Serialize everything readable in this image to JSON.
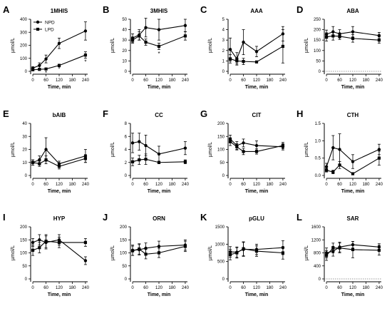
{
  "legend": {
    "npd": "NPD",
    "lpd": "LPD"
  },
  "chart_data": [
    {
      "letter": "A",
      "type": "line",
      "title": "1MHIS",
      "ylabel": "µmol/L",
      "xlabel": "Time, min",
      "x": [
        0,
        30,
        60,
        120,
        240
      ],
      "xticks": [
        "0",
        "60",
        "120",
        "180",
        "240"
      ],
      "xtick_values": [
        0,
        60,
        120,
        180,
        240
      ],
      "ylim": [
        0,
        400
      ],
      "yticks": [
        "0",
        "100",
        "200",
        "300",
        "400"
      ],
      "ytick_values": [
        0,
        100,
        200,
        300,
        400
      ],
      "has_legend": true,
      "series": [
        {
          "name": "NPD",
          "marker": "circle",
          "values": [
            25,
            45,
            95,
            215,
            310
          ],
          "err": [
            10,
            20,
            30,
            40,
            70
          ]
        },
        {
          "name": "LPD",
          "marker": "square",
          "values": [
            12,
            15,
            18,
            45,
            125
          ],
          "err": [
            5,
            5,
            6,
            10,
            25
          ]
        }
      ],
      "annotations": [
        {
          "text": "*",
          "x": 60,
          "y": -10
        },
        {
          "text": "*",
          "x": 120,
          "y": 18
        },
        {
          "text": "*",
          "x": 240,
          "y": 75
        }
      ]
    },
    {
      "letter": "B",
      "type": "line",
      "title": "3MHIS",
      "ylabel": "µmol/L",
      "xlabel": "Time, min",
      "x": [
        0,
        30,
        60,
        120,
        240
      ],
      "xticks": [
        "0",
        "60",
        "120",
        "180",
        "240"
      ],
      "xtick_values": [
        0,
        60,
        120,
        180,
        240
      ],
      "ylim": [
        0,
        50
      ],
      "yticks": [
        "0",
        "10",
        "20",
        "30",
        "40",
        "50"
      ],
      "ytick_values": [
        0,
        10,
        20,
        30,
        40,
        50
      ],
      "has_legend": false,
      "series": [
        {
          "name": "NPD",
          "marker": "circle",
          "values": [
            32,
            35,
            42,
            40,
            44
          ],
          "err": [
            4,
            5,
            9,
            10,
            6
          ]
        },
        {
          "name": "LPD",
          "marker": "square",
          "values": [
            30,
            34,
            28,
            24,
            34
          ],
          "err": [
            3,
            4,
            3,
            3,
            4
          ]
        }
      ],
      "annotations": [
        {
          "text": "*",
          "x": 120,
          "y": 17
        }
      ]
    },
    {
      "letter": "C",
      "type": "line",
      "title": "AAA",
      "ylabel": "µmol/L",
      "xlabel": "Time, min",
      "x": [
        0,
        30,
        60,
        120,
        240
      ],
      "xticks": [
        "0",
        "60",
        "120",
        "180",
        "240"
      ],
      "xtick_values": [
        0,
        60,
        120,
        180,
        240
      ],
      "ylim": [
        0,
        5
      ],
      "yticks": [
        "0",
        "1",
        "2",
        "3",
        "4",
        "5"
      ],
      "ytick_values": [
        0,
        1,
        2,
        3,
        4,
        5
      ],
      "has_legend": false,
      "series": [
        {
          "name": "NPD",
          "marker": "circle",
          "values": [
            2.1,
            1.2,
            2.8,
            1.9,
            3.6
          ],
          "err": [
            1.1,
            0.6,
            1.2,
            0.5,
            0.7
          ]
        },
        {
          "name": "LPD",
          "marker": "square",
          "values": [
            1.2,
            1.0,
            0.95,
            0.9,
            2.4
          ],
          "err": [
            0.4,
            0.3,
            0.3,
            0.1,
            1.6
          ]
        }
      ],
      "annotations": []
    },
    {
      "letter": "D",
      "type": "line",
      "title": "ABA",
      "ylabel": "µmol/L",
      "xlabel": "Time, min",
      "x": [
        0,
        30,
        60,
        120,
        240
      ],
      "xticks": [
        "0",
        "60",
        "120",
        "180",
        "240"
      ],
      "xtick_values": [
        0,
        60,
        120,
        180,
        240
      ],
      "ylim": [
        0,
        250
      ],
      "yticks": [
        "0",
        "50",
        "100",
        "150",
        "200",
        "250"
      ],
      "ytick_values": [
        0,
        50,
        100,
        150,
        200,
        250
      ],
      "has_legend": false,
      "series": [
        {
          "name": "NPD",
          "marker": "circle",
          "values": [
            178,
            190,
            180,
            190,
            172
          ],
          "err": [
            20,
            25,
            20,
            25,
            15
          ]
        },
        {
          "name": "LPD",
          "marker": "square",
          "values": [
            165,
            170,
            168,
            158,
            150
          ],
          "err": [
            20,
            20,
            15,
            18,
            15
          ]
        }
      ],
      "annotations": []
    },
    {
      "letter": "E",
      "type": "line",
      "title": "bAIB",
      "ylabel": "µmol/L",
      "xlabel": "Time, min",
      "x": [
        0,
        30,
        60,
        120,
        240
      ],
      "xticks": [
        "0",
        "60",
        "120",
        "180",
        "240"
      ],
      "xtick_values": [
        0,
        60,
        120,
        180,
        240
      ],
      "ylim": [
        0,
        40
      ],
      "yticks": [
        "0",
        "10",
        "20",
        "30",
        "40"
      ],
      "ytick_values": [
        0,
        10,
        20,
        30,
        40
      ],
      "has_legend": false,
      "series": [
        {
          "name": "NPD",
          "marker": "circle",
          "values": [
            10,
            12,
            20,
            9,
            15
          ],
          "err": [
            2,
            3,
            9,
            2,
            5
          ]
        },
        {
          "name": "LPD",
          "marker": "square",
          "values": [
            10,
            9,
            12,
            7,
            13
          ],
          "err": [
            2,
            2,
            3,
            2,
            3
          ]
        }
      ],
      "annotations": []
    },
    {
      "letter": "F",
      "type": "line",
      "title": "CC",
      "ylabel": "µmol/L",
      "xlabel": "Time, min",
      "x": [
        0,
        30,
        60,
        120,
        240
      ],
      "xticks": [
        "0",
        "60",
        "120",
        "180",
        "240"
      ],
      "xtick_values": [
        0,
        60,
        120,
        180,
        240
      ],
      "ylim": [
        0,
        8
      ],
      "yticks": [
        "0",
        "2",
        "4",
        "6",
        "8"
      ],
      "ytick_values": [
        0,
        2,
        4,
        6,
        8
      ],
      "has_legend": false,
      "series": [
        {
          "name": "NPD",
          "marker": "circle",
          "values": [
            5.0,
            5.2,
            4.6,
            3.3,
            4.2
          ],
          "err": [
            1.5,
            1.3,
            1.6,
            1.2,
            1.0
          ]
        },
        {
          "name": "LPD",
          "marker": "square",
          "values": [
            2.1,
            2.4,
            2.5,
            2.0,
            2.1
          ],
          "err": [
            0.6,
            0.7,
            0.8,
            0.2,
            0.3
          ]
        }
      ],
      "annotations": []
    },
    {
      "letter": "G",
      "type": "line",
      "title": "CIT",
      "ylabel": "µmol/L",
      "xlabel": "Time, min",
      "x": [
        0,
        30,
        60,
        120,
        240
      ],
      "xticks": [
        "0",
        "60",
        "120",
        "180",
        "240"
      ],
      "xtick_values": [
        0,
        60,
        120,
        180,
        240
      ],
      "ylim": [
        0,
        200
      ],
      "yticks": [
        "0",
        "50",
        "100",
        "150",
        "200"
      ],
      "ytick_values": [
        0,
        50,
        100,
        150,
        200
      ],
      "has_legend": false,
      "series": [
        {
          "name": "NPD",
          "marker": "circle",
          "values": [
            140,
            115,
            125,
            115,
            110
          ],
          "err": [
            15,
            15,
            15,
            18,
            12
          ]
        },
        {
          "name": "LPD",
          "marker": "square",
          "values": [
            130,
            110,
            92,
            92,
            115
          ],
          "err": [
            15,
            12,
            12,
            10,
            12
          ]
        }
      ],
      "annotations": []
    },
    {
      "letter": "H",
      "type": "line",
      "title": "CTH",
      "ylabel": "µmol/L",
      "xlabel": "Time, min",
      "x": [
        0,
        30,
        60,
        120,
        240
      ],
      "xticks": [
        "0",
        "60",
        "120",
        "180",
        "240"
      ],
      "xtick_values": [
        0,
        60,
        120,
        180,
        240
      ],
      "ylim": [
        0,
        1.5
      ],
      "yticks": [
        "0.0",
        "0.5",
        "1.0",
        "1.5"
      ],
      "ytick_values": [
        0,
        0.5,
        1.0,
        1.5
      ],
      "has_legend": false,
      "series": [
        {
          "name": "NPD",
          "marker": "circle",
          "values": [
            0.25,
            0.8,
            0.75,
            0.4,
            0.75
          ],
          "err": [
            0.1,
            0.35,
            0.45,
            0.2,
            0.15
          ]
        },
        {
          "name": "LPD",
          "marker": "square",
          "values": [
            0.15,
            0.1,
            0.3,
            0.05,
            0.5
          ],
          "err": [
            0.05,
            0.05,
            0.1,
            0.02,
            0.2
          ]
        }
      ],
      "annotations": []
    },
    {
      "letter": "I",
      "type": "line",
      "title": "HYP",
      "ylabel": "µmol/L",
      "xlabel": "Time, min",
      "x": [
        0,
        30,
        60,
        120,
        240
      ],
      "xticks": [
        "0",
        "60",
        "120",
        "180",
        "240"
      ],
      "xtick_values": [
        0,
        60,
        120,
        180,
        240
      ],
      "ylim": [
        0,
        200
      ],
      "yticks": [
        "0",
        "50",
        "100",
        "150",
        "200"
      ],
      "ytick_values": [
        0,
        50,
        100,
        150,
        200
      ],
      "has_legend": false,
      "series": [
        {
          "name": "NPD",
          "marker": "circle",
          "values": [
            140,
            150,
            140,
            150,
            70
          ],
          "err": [
            15,
            20,
            25,
            20,
            15
          ]
        },
        {
          "name": "LPD",
          "marker": "square",
          "values": [
            110,
            120,
            145,
            140,
            140
          ],
          "err": [
            20,
            20,
            25,
            20,
            15
          ]
        }
      ],
      "annotations": []
    },
    {
      "letter": "J",
      "type": "line",
      "title": "ORN",
      "ylabel": "µmol/L",
      "xlabel": "Time, min",
      "x": [
        0,
        30,
        60,
        120,
        240
      ],
      "xticks": [
        "0",
        "60",
        "120",
        "180",
        "240"
      ],
      "xtick_values": [
        0,
        60,
        120,
        180,
        240
      ],
      "ylim": [
        0,
        200
      ],
      "yticks": [
        "0",
        "50",
        "100",
        "150",
        "200"
      ],
      "ytick_values": [
        0,
        50,
        100,
        150,
        200
      ],
      "has_legend": false,
      "series": [
        {
          "name": "NPD",
          "marker": "circle",
          "values": [
            110,
            112,
            118,
            125,
            130
          ],
          "err": [
            20,
            20,
            20,
            20,
            20
          ]
        },
        {
          "name": "LPD",
          "marker": "square",
          "values": [
            108,
            115,
            95,
            100,
            125
          ],
          "err": [
            18,
            20,
            18,
            18,
            20
          ]
        }
      ],
      "annotations": []
    },
    {
      "letter": "K",
      "type": "line",
      "title": "pGLU",
      "ylabel": "µmol/L",
      "xlabel": "Time, min",
      "x": [
        0,
        30,
        60,
        120,
        240
      ],
      "xticks": [
        "0",
        "60",
        "120",
        "180",
        "240"
      ],
      "xtick_values": [
        0,
        60,
        120,
        180,
        240
      ],
      "ylim": [
        0,
        1500
      ],
      "yticks": [
        "0",
        "500",
        "1000",
        "1500"
      ],
      "ytick_values": [
        0,
        500,
        1000,
        1500
      ],
      "has_legend": false,
      "series": [
        {
          "name": "NPD",
          "marker": "circle",
          "values": [
            780,
            770,
            850,
            850,
            900
          ],
          "err": [
            150,
            150,
            200,
            150,
            200
          ]
        },
        {
          "name": "LPD",
          "marker": "square",
          "values": [
            700,
            750,
            870,
            800,
            750
          ],
          "err": [
            150,
            150,
            200,
            150,
            180
          ]
        }
      ],
      "annotations": []
    },
    {
      "letter": "L",
      "type": "line",
      "title": "SAR",
      "ylabel": "µmol/L",
      "xlabel": "Time, min",
      "x": [
        0,
        30,
        60,
        120,
        240
      ],
      "xticks": [
        "0",
        "60",
        "120",
        "180",
        "240"
      ],
      "xtick_values": [
        0,
        60,
        120,
        180,
        240
      ],
      "ylim": [
        0,
        1600
      ],
      "yticks": [
        "0",
        "400",
        "800",
        "1200",
        "1600"
      ],
      "ytick_values": [
        0,
        400,
        800,
        1200,
        1600
      ],
      "has_legend": false,
      "series": [
        {
          "name": "NPD",
          "marker": "circle",
          "values": [
            800,
            850,
            980,
            1050,
            980
          ],
          "err": [
            150,
            150,
            150,
            100,
            100
          ]
        },
        {
          "name": "LPD",
          "marker": "square",
          "values": [
            720,
            950,
            950,
            900,
            880
          ],
          "err": [
            150,
            150,
            150,
            250,
            150
          ]
        }
      ],
      "annotations": []
    }
  ]
}
